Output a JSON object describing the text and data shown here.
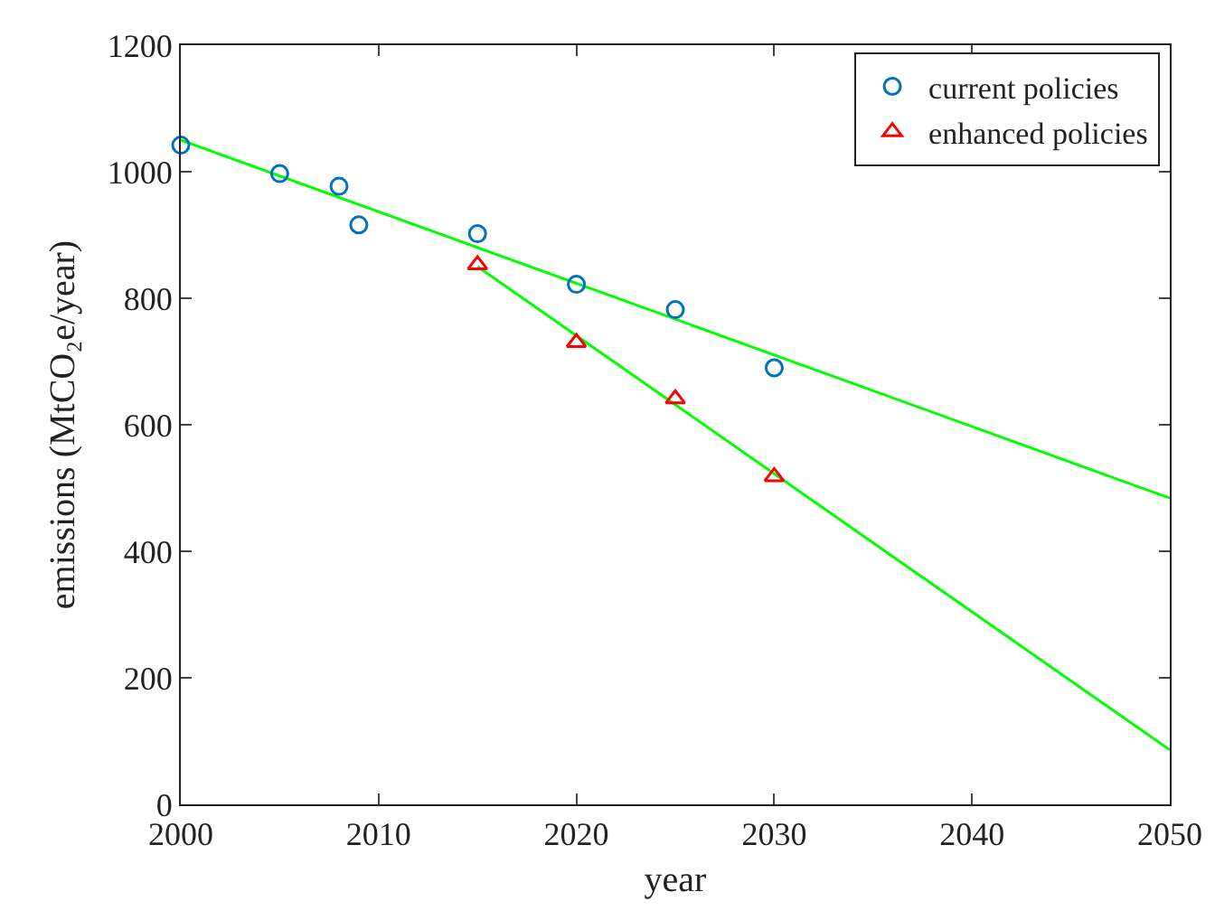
{
  "chart_data": {
    "type": "scatter",
    "xlabel": "year",
    "ylabel": "emissions (MtCO₂e/year)",
    "xlim": [
      2000,
      2050
    ],
    "xticks": [
      2000,
      2010,
      2020,
      2030,
      2040,
      2050
    ],
    "ylim": [
      0,
      1200
    ],
    "yticks": [
      0,
      200,
      400,
      600,
      800,
      1000,
      1200
    ],
    "grid": false,
    "legend": "top right",
    "series": [
      {
        "name": "current policies",
        "marker": "circle",
        "color": "#0072bd",
        "x": [
          2000,
          2005,
          2008,
          2009,
          2015,
          2020,
          2025,
          2030
        ],
        "values": [
          1042,
          997,
          977,
          916,
          902,
          822,
          782,
          690
        ]
      },
      {
        "name": "enhanced policies",
        "marker": "triangle",
        "color": "#ff0000",
        "x": [
          2015,
          2020,
          2025,
          2030
        ],
        "values": [
          853,
          730,
          641,
          518
        ]
      },
      {
        "type": "line",
        "marker": "none",
        "line_style": "solid",
        "color": "#00ff00",
        "x": [
          2000,
          2050
        ],
        "values": [
          1050,
          484
        ]
      },
      {
        "type": "line",
        "marker": "none",
        "line_style": "solid",
        "color": "#00ff00",
        "x": [
          2015,
          2050
        ],
        "values": [
          850,
          86
        ]
      }
    ]
  }
}
